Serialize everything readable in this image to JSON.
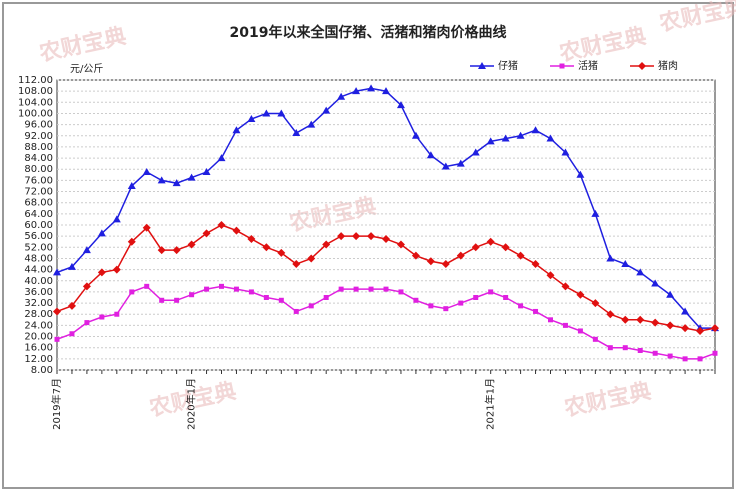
{
  "chart_data": {
    "type": "line",
    "title": "2019年以来全国仔猪、活猪和猪肉价格曲线",
    "y_label": "元/公斤",
    "watermark": "农财宝典",
    "categories": [
      "2019年7月",
      null,
      null,
      null,
      null,
      null,
      null,
      null,
      null,
      "2020年1月",
      null,
      null,
      null,
      null,
      null,
      null,
      null,
      null,
      null,
      null,
      null,
      null,
      null,
      null,
      null,
      null,
      null,
      null,
      null,
      "2021年1月",
      null,
      null,
      null,
      null,
      null,
      null,
      null,
      null,
      null,
      null,
      null,
      null,
      null,
      null,
      null
    ],
    "series": [
      {
        "name": "仔猪",
        "color": "#1f1fe0",
        "marker": "triangle",
        "values": [
          43,
          45,
          51,
          57,
          62,
          74,
          79,
          76,
          75,
          77,
          79,
          84,
          94,
          98,
          100,
          100,
          93,
          96,
          101,
          106,
          108,
          109,
          108,
          103,
          92,
          85,
          81,
          82,
          86,
          90,
          91,
          92,
          94,
          91,
          86,
          78,
          64,
          48,
          46,
          43,
          39,
          35,
          29,
          23,
          23
        ]
      },
      {
        "name": "活猪",
        "color": "#e020e0",
        "marker": "square",
        "values": [
          19,
          21,
          25,
          27,
          28,
          36,
          38,
          33,
          33,
          35,
          37,
          38,
          37,
          36,
          34,
          33,
          29,
          31,
          34,
          37,
          37,
          37,
          37,
          36,
          33,
          31,
          30,
          32,
          34,
          36,
          34,
          31,
          29,
          26,
          24,
          22,
          19,
          16,
          16,
          15,
          14,
          13,
          12,
          12,
          14
        ]
      },
      {
        "name": "猪肉",
        "color": "#e01010",
        "marker": "diamond",
        "values": [
          29,
          31,
          38,
          43,
          44,
          54,
          59,
          51,
          51,
          53,
          57,
          60,
          58,
          55,
          52,
          50,
          46,
          48,
          53,
          56,
          56,
          56,
          55,
          53,
          49,
          47,
          46,
          49,
          52,
          54,
          52,
          49,
          46,
          42,
          38,
          35,
          32,
          28,
          26,
          26,
          25,
          24,
          23,
          22,
          23
        ]
      }
    ],
    "ylim": [
      8,
      112
    ],
    "yticks": [
      {
        "value": 8,
        "label": "8.00"
      },
      {
        "value": 12,
        "label": "12.00"
      },
      {
        "value": 16,
        "label": "16.00"
      },
      {
        "value": 20,
        "label": "20.00"
      },
      {
        "value": 24,
        "label": "24.00"
      },
      {
        "value": 28,
        "label": "28.00"
      },
      {
        "value": 32,
        "label": "32.00"
      },
      {
        "value": 36,
        "label": "36.00"
      },
      {
        "value": 40,
        "label": "40.00"
      },
      {
        "value": 44,
        "label": "44.00"
      },
      {
        "value": 48,
        "label": "48.00"
      },
      {
        "value": 52,
        "label": "52.00"
      },
      {
        "value": 56,
        "label": "56.00"
      },
      {
        "value": 60,
        "label": "60.00"
      },
      {
        "value": 64,
        "label": "64.00"
      },
      {
        "value": 68,
        "label": "68.00"
      },
      {
        "value": 72,
        "label": "72.00"
      },
      {
        "value": 76,
        "label": "76.00"
      },
      {
        "value": 80,
        "label": "80.00"
      },
      {
        "value": 84,
        "label": "84.00"
      },
      {
        "value": 88,
        "label": "88.00"
      },
      {
        "value": 92,
        "label": "92.00"
      },
      {
        "value": 96,
        "label": "96.00"
      },
      {
        "value": 100,
        "label": "100.00"
      },
      {
        "value": 104,
        "label": "104.00"
      },
      {
        "value": 108,
        "label": "108.00"
      },
      {
        "value": 112,
        "label": "112.00"
      }
    ],
    "grid": true,
    "legend": "top-right"
  }
}
